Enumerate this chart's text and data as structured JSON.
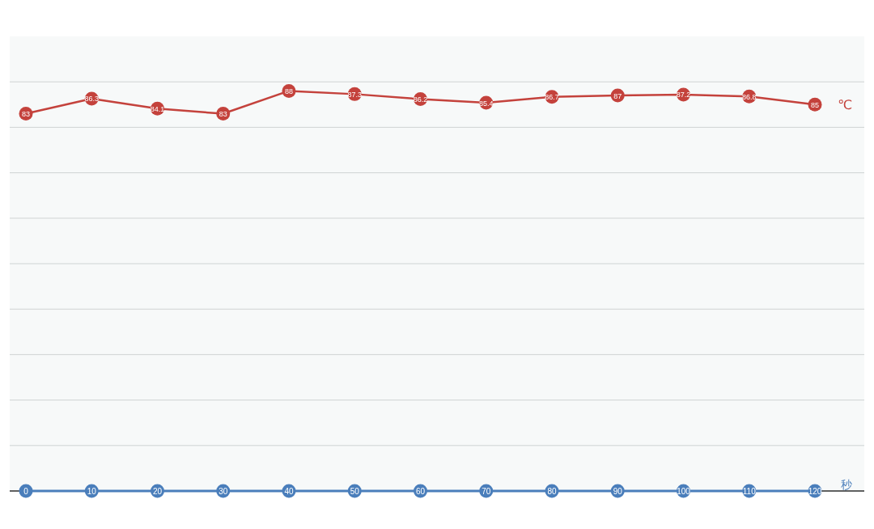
{
  "chart_data": {
    "type": "line",
    "xlabel": "秒",
    "categories": [
      "0",
      "10",
      "20",
      "30",
      "40",
      "50",
      "60",
      "70",
      "80",
      "90",
      "100",
      "110",
      "120"
    ],
    "series": [
      {
        "name": "℃",
        "color": "#c4423c",
        "values": [
          83,
          86.3,
          84.1,
          83,
          88,
          87.3,
          86.2,
          85.4,
          86.7,
          87,
          87.2,
          86.8,
          85
        ]
      }
    ],
    "ylim": [
      0,
      100
    ],
    "yticks": [
      {
        "value": 0,
        "label": null
      },
      {
        "value": 10,
        "label": null
      },
      {
        "value": 20,
        "label": null
      },
      {
        "value": 30,
        "label": null
      },
      {
        "value": 40,
        "label": null
      },
      {
        "value": 50,
        "label": null
      },
      {
        "value": 60,
        "label": null
      },
      {
        "value": 70,
        "label": null
      },
      {
        "value": 80,
        "label": null
      },
      {
        "value": 90,
        "label": null
      }
    ],
    "grid": "y",
    "tick_labels": "x",
    "data_labels": true,
    "marker": "circle"
  }
}
